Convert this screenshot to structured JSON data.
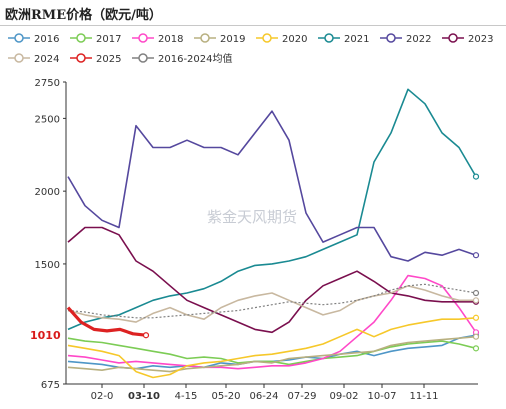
{
  "chart_data": {
    "type": "line",
    "title": "欧洲RME价格（欧元/吨）",
    "watermark": "紫金天风期货",
    "y_ticks": [
      675,
      1500,
      2000,
      2500,
      2750
    ],
    "ylim": [
      675,
      2750
    ],
    "x_ticks": [
      "02-0",
      "03-10",
      "4-15",
      "05-20",
      "06-24",
      "07-29",
      "09-02",
      "10-07",
      "11-11"
    ],
    "highlighted_tick": "03-10",
    "annotation": "1010",
    "legend": [
      {
        "name": "2016",
        "color": "#4e96c7"
      },
      {
        "name": "2017",
        "color": "#7ccc55"
      },
      {
        "name": "2018",
        "color": "#ff48c8"
      },
      {
        "name": "2019",
        "color": "#b8b080"
      },
      {
        "name": "2020",
        "color": "#f6c82a"
      },
      {
        "name": "2021",
        "color": "#1a8a92"
      },
      {
        "name": "2022",
        "color": "#55489e"
      },
      {
        "name": "2023",
        "color": "#7a0f4e"
      },
      {
        "name": "2024",
        "color": "#c8b8a0"
      },
      {
        "name": "2025",
        "color": "#dd2222"
      },
      {
        "name": "2016-2024均值",
        "color": "#808080"
      }
    ],
    "series": [
      {
        "name": "2016",
        "values": [
          830,
          820,
          810,
          790,
          780,
          800,
          790,
          800,
          790,
          820,
          810,
          830,
          830,
          840,
          860,
          850,
          880,
          900,
          870,
          900,
          920,
          930,
          940,
          990,
          1010
        ]
      },
      {
        "name": "2017",
        "values": [
          990,
          970,
          960,
          940,
          920,
          900,
          880,
          850,
          860,
          850,
          820,
          830,
          830,
          810,
          830,
          850,
          860,
          870,
          900,
          930,
          950,
          960,
          970,
          950,
          920
        ]
      },
      {
        "name": "2018",
        "values": [
          870,
          860,
          840,
          820,
          830,
          820,
          810,
          800,
          790,
          790,
          780,
          790,
          800,
          800,
          820,
          850,
          900,
          1000,
          1100,
          1250,
          1420,
          1400,
          1350,
          1200,
          1030
        ]
      },
      {
        "name": "2019",
        "values": [
          790,
          780,
          770,
          790,
          780,
          770,
          760,
          780,
          790,
          800,
          810,
          830,
          820,
          850,
          860,
          870,
          880,
          890,
          900,
          940,
          960,
          970,
          980,
          990,
          1000
        ]
      },
      {
        "name": "2020",
        "values": [
          940,
          920,
          900,
          870,
          760,
          720,
          740,
          800,
          820,
          830,
          850,
          870,
          880,
          900,
          920,
          950,
          1000,
          1050,
          1000,
          1050,
          1080,
          1100,
          1120,
          1120,
          1130
        ]
      },
      {
        "name": "2021",
        "values": [
          1050,
          1100,
          1130,
          1150,
          1200,
          1250,
          1280,
          1300,
          1330,
          1380,
          1450,
          1490,
          1500,
          1520,
          1550,
          1600,
          1650,
          1700,
          2200,
          2400,
          2700,
          2600,
          2400,
          2300,
          2100
        ]
      },
      {
        "name": "2022",
        "values": [
          2100,
          1900,
          1800,
          1750,
          2450,
          2300,
          2300,
          2350,
          2300,
          2300,
          2250,
          2400,
          2550,
          2350,
          1850,
          1650,
          1700,
          1750,
          1750,
          1550,
          1520,
          1580,
          1560,
          1600,
          1560
        ]
      },
      {
        "name": "2023",
        "values": [
          1650,
          1750,
          1750,
          1700,
          1520,
          1450,
          1350,
          1250,
          1200,
          1150,
          1100,
          1050,
          1030,
          1100,
          1250,
          1350,
          1400,
          1450,
          1380,
          1300,
          1280,
          1250,
          1240,
          1240,
          1240
        ]
      },
      {
        "name": "2024",
        "values": [
          1180,
          1150,
          1130,
          1120,
          1100,
          1160,
          1200,
          1150,
          1120,
          1200,
          1250,
          1280,
          1300,
          1250,
          1200,
          1150,
          1180,
          1250,
          1280,
          1300,
          1350,
          1320,
          1280,
          1250,
          1250
        ]
      },
      {
        "name": "2025",
        "values": [
          1200,
          1100,
          1050,
          1040,
          1050,
          1020,
          1010
        ]
      },
      {
        "name": "2016-2024均值",
        "values": [
          1180,
          1170,
          1150,
          1140,
          1130,
          1130,
          1140,
          1150,
          1160,
          1170,
          1180,
          1200,
          1220,
          1240,
          1230,
          1220,
          1230,
          1250,
          1280,
          1320,
          1350,
          1360,
          1340,
          1320,
          1300
        ]
      }
    ]
  }
}
